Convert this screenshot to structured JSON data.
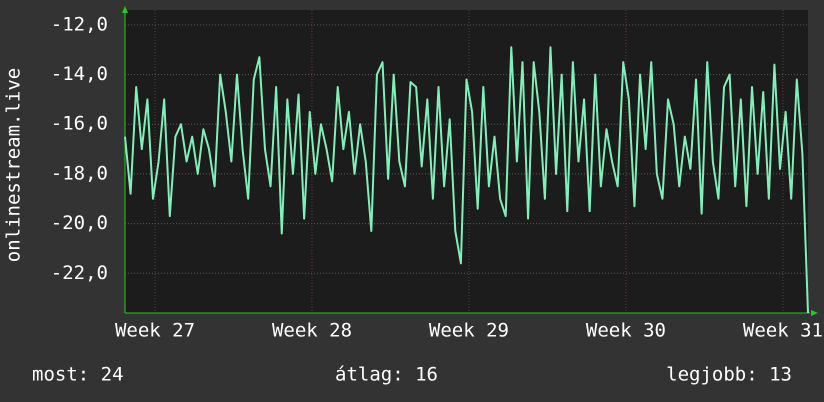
{
  "chart_data": {
    "type": "line",
    "ylabel": "onlinestream.live",
    "color": "#80f0b8",
    "grid": true,
    "xlim": [
      0,
      30.5
    ],
    "ylim": [
      -23.6,
      -11.4
    ],
    "yticks": [
      {
        "value": -12,
        "label": "-12,0"
      },
      {
        "value": -14,
        "label": "-14,0"
      },
      {
        "value": -16,
        "label": "-16,0"
      },
      {
        "value": -18,
        "label": "-18,0"
      },
      {
        "value": -20,
        "label": "-20,0"
      },
      {
        "value": -22,
        "label": "-22,0"
      }
    ],
    "xticks": [
      {
        "value": 1.34,
        "label": "Week 27"
      },
      {
        "value": 8.35,
        "label": "Week 28"
      },
      {
        "value": 15.36,
        "label": "Week 29"
      },
      {
        "value": 22.37,
        "label": "Week 30"
      },
      {
        "value": 29.38,
        "label": "Week 31"
      }
    ],
    "x": [
      0,
      0.25,
      0.5,
      0.75,
      1,
      1.25,
      1.5,
      1.75,
      2,
      2.25,
      2.5,
      2.75,
      3,
      3.25,
      3.5,
      3.75,
      4,
      4.25,
      4.5,
      4.75,
      5,
      5.25,
      5.5,
      5.75,
      6,
      6.25,
      6.5,
      6.75,
      7,
      7.25,
      7.5,
      7.75,
      8,
      8.25,
      8.5,
      8.75,
      9,
      9.25,
      9.5,
      9.75,
      10,
      10.25,
      10.5,
      10.75,
      11,
      11.25,
      11.5,
      11.75,
      12,
      12.25,
      12.5,
      12.75,
      13,
      13.25,
      13.5,
      13.75,
      14,
      14.25,
      14.5,
      14.75,
      15,
      15.25,
      15.5,
      15.75,
      16,
      16.25,
      16.5,
      16.75,
      17,
      17.25,
      17.5,
      17.75,
      18,
      18.25,
      18.5,
      18.75,
      19,
      19.25,
      19.5,
      19.75,
      20,
      20.25,
      20.5,
      20.75,
      21,
      21.25,
      21.5,
      21.75,
      22,
      22.25,
      22.5,
      22.75,
      23,
      23.25,
      23.5,
      23.75,
      24,
      24.25,
      24.5,
      24.75,
      25,
      25.25,
      25.5,
      25.75,
      26,
      26.25,
      26.5,
      26.75,
      27,
      27.25,
      27.5,
      27.75,
      28,
      28.25,
      28.5,
      28.75,
      29,
      29.25,
      29.5,
      29.75,
      30,
      30.25,
      30.5
    ],
    "values": [
      -16.5,
      -18.8,
      -14.5,
      -17,
      -15,
      -19,
      -17.5,
      -15,
      -19.7,
      -16.5,
      -16,
      -17.5,
      -16.5,
      -18,
      -16.2,
      -17,
      -18.5,
      -14,
      -15.5,
      -17.5,
      -14,
      -17,
      -19,
      -14.2,
      -13.3,
      -17,
      -18.5,
      -14.5,
      -20.4,
      -15,
      -18,
      -14.8,
      -19.8,
      -15.5,
      -18,
      -16,
      -17,
      -18.3,
      -14.5,
      -17,
      -15.5,
      -18,
      -16,
      -17.5,
      -20.3,
      -14,
      -13.5,
      -18.2,
      -14,
      -17.5,
      -18.5,
      -14.3,
      -14.5,
      -17.7,
      -15,
      -19,
      -14.5,
      -18.5,
      -15.8,
      -20.3,
      -21.6,
      -14.2,
      -15.5,
      -19.4,
      -14.5,
      -18.5,
      -16.5,
      -19,
      -19.7,
      -12.9,
      -17.5,
      -13.5,
      -19.8,
      -13.5,
      -15.5,
      -19,
      -12.9,
      -18,
      -14,
      -19.5,
      -13.5,
      -17.5,
      -15,
      -19.5,
      -14,
      -18.5,
      -16.2,
      -17.5,
      -18.5,
      -13.5,
      -15,
      -19.3,
      -14,
      -17,
      -13.5,
      -18,
      -19,
      -15,
      -16,
      -18.5,
      -16.5,
      -17.8,
      -14.2,
      -19.6,
      -13.5,
      -17.5,
      -19,
      -14.5,
      -14,
      -18.5,
      -15,
      -19.3,
      -14.5,
      -18,
      -14.7,
      -19,
      -13.6,
      -17.8,
      -15.5,
      -19,
      -14.2,
      -17.2,
      -23.6
    ],
    "stats": [
      "most: 24",
      "átlag: 16",
      "legjobb: 13"
    ]
  }
}
